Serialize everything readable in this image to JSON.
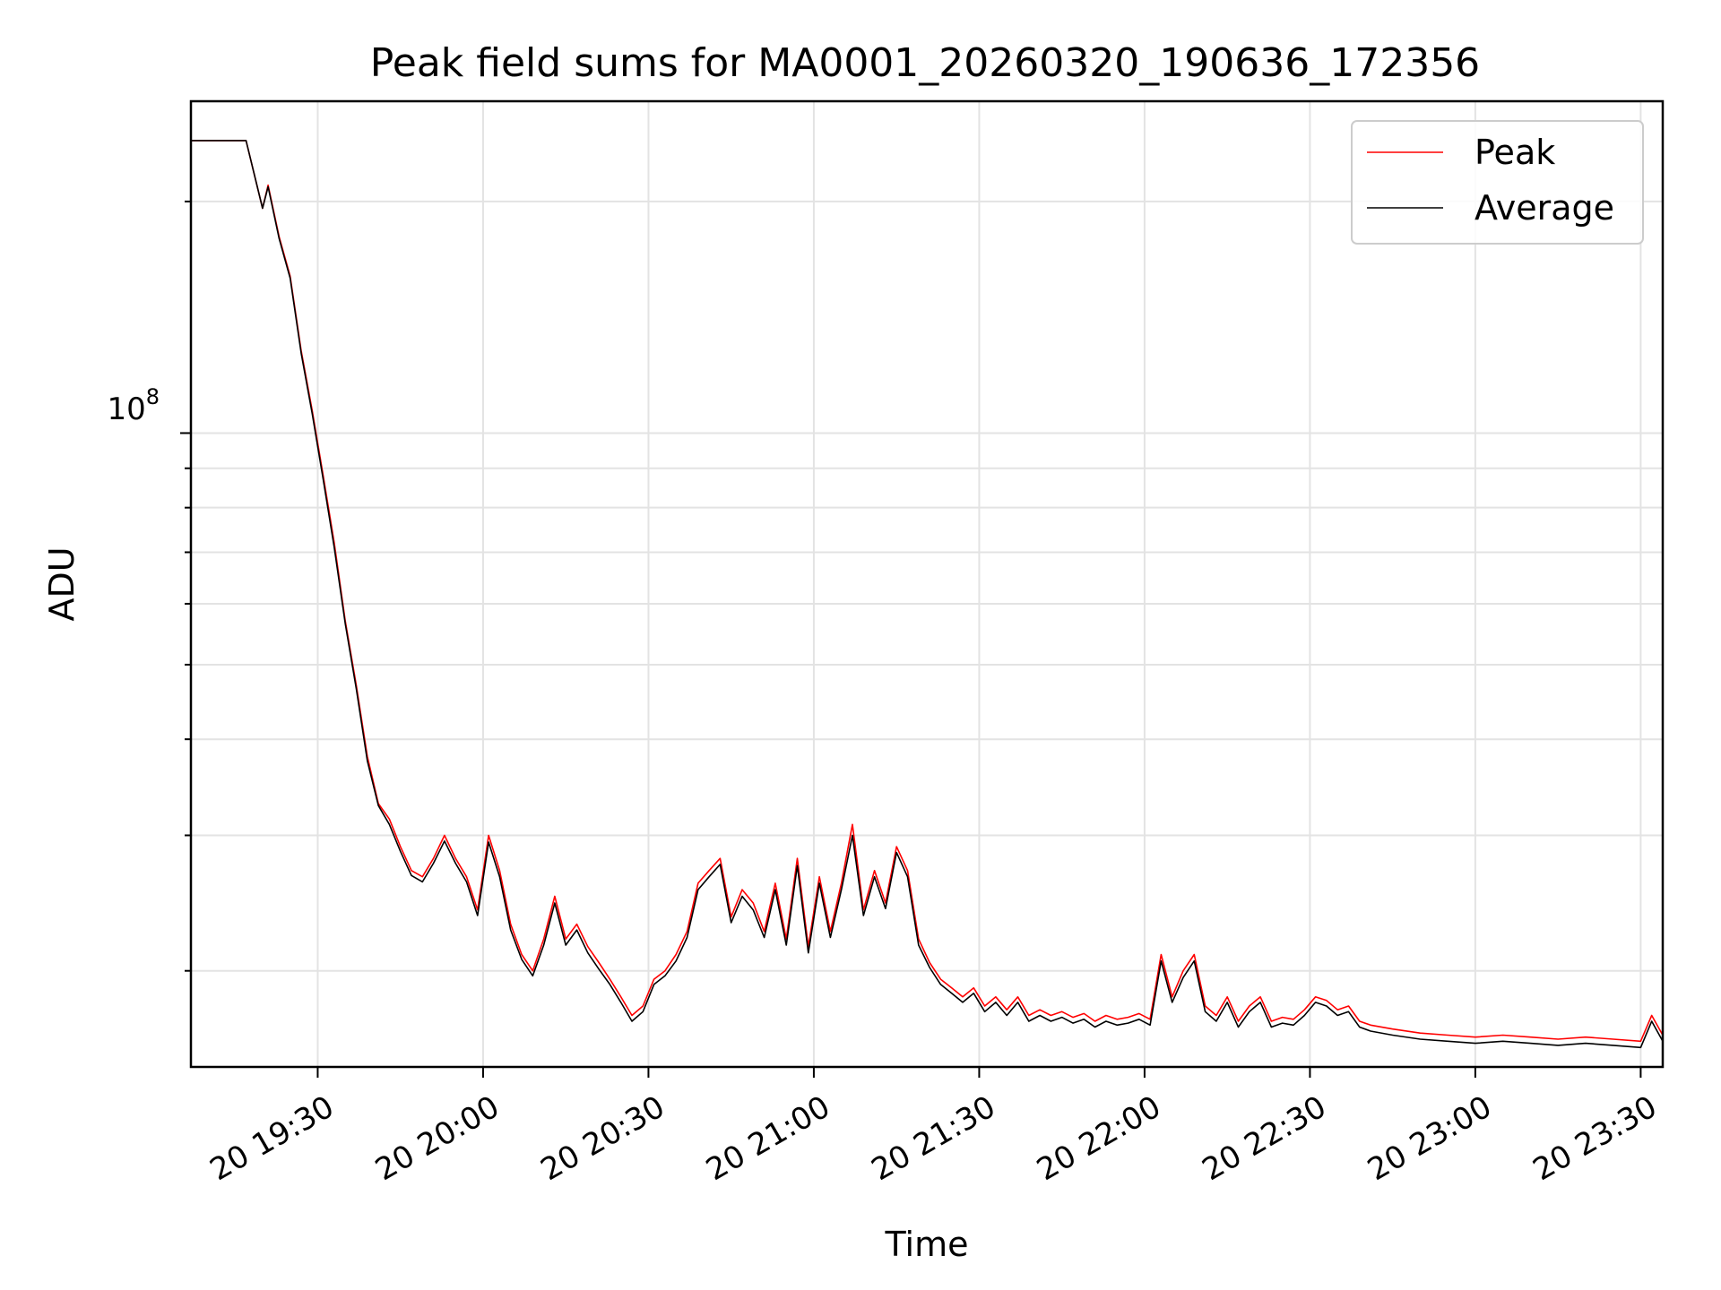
{
  "chart_data": {
    "type": "line",
    "title": "Peak field sums for MA0001_20260320_190636_172356",
    "xlabel": "Time",
    "ylabel": "ADU",
    "yscale": "log",
    "xlim": [
      "20 19:07",
      "20 23:34"
    ],
    "ylim": [
      15000000,
      270000000
    ],
    "x_ticks": [
      "20 19:30",
      "20 20:00",
      "20 20:30",
      "20 21:00",
      "20 21:30",
      "20 22:00",
      "20 22:30",
      "20 23:00",
      "20 23:30"
    ],
    "y_major_tick": {
      "value": 100000000,
      "base": "10",
      "exponent": "8"
    },
    "grid": true,
    "legend": {
      "position": "top-right",
      "entries": [
        "Peak",
        "Average"
      ]
    },
    "colors": {
      "Peak": "#ff0000",
      "Average": "#000000"
    },
    "series": [
      {
        "name": "Peak",
        "points": [
          [
            "20 19:07",
            240000000
          ],
          [
            "20 19:17",
            240000000
          ],
          [
            "20 19:20",
            196000000
          ],
          [
            "20 19:21",
            210000000
          ],
          [
            "20 19:23",
            180000000
          ],
          [
            "20 19:25",
            160000000
          ],
          [
            "20 19:27",
            128000000
          ],
          [
            "20 19:29",
            107000000
          ],
          [
            "20 19:31",
            88000000
          ],
          [
            "20 19:33",
            72000000
          ],
          [
            "20 19:35",
            57000000
          ],
          [
            "20 19:37",
            47000000
          ],
          [
            "20 19:39",
            38000000
          ],
          [
            "20 19:41",
            33000000
          ],
          [
            "20 19:43",
            31500000
          ],
          [
            "20 19:45",
            29000000
          ],
          [
            "20 19:47",
            27000000
          ],
          [
            "20 19:49",
            26500000
          ],
          [
            "20 19:51",
            28000000
          ],
          [
            "20 19:53",
            30000000
          ],
          [
            "20 19:55",
            28000000
          ],
          [
            "20 19:57",
            26500000
          ],
          [
            "20 19:59",
            24000000
          ],
          [
            "20 20:01",
            30000000
          ],
          [
            "20 20:03",
            27000000
          ],
          [
            "20 20:05",
            23000000
          ],
          [
            "20 20:07",
            21000000
          ],
          [
            "20 20:09",
            20000000
          ],
          [
            "20 20:11",
            22000000
          ],
          [
            "20 20:13",
            25000000
          ],
          [
            "20 20:15",
            22000000
          ],
          [
            "20 20:17",
            23000000
          ],
          [
            "20 20:19",
            21500000
          ],
          [
            "20 20:21",
            20500000
          ],
          [
            "20 20:23",
            19500000
          ],
          [
            "20 20:25",
            18500000
          ],
          [
            "20 20:27",
            17500000
          ],
          [
            "20 20:29",
            18000000
          ],
          [
            "20 20:31",
            19500000
          ],
          [
            "20 20:33",
            20000000
          ],
          [
            "20 20:35",
            21000000
          ],
          [
            "20 20:37",
            22500000
          ],
          [
            "20 20:39",
            26000000
          ],
          [
            "20 20:41",
            27000000
          ],
          [
            "20 20:43",
            28000000
          ],
          [
            "20 20:45",
            23500000
          ],
          [
            "20 20:47",
            25500000
          ],
          [
            "20 20:49",
            24500000
          ],
          [
            "20 20:51",
            22500000
          ],
          [
            "20 20:53",
            26000000
          ],
          [
            "20 20:55",
            22000000
          ],
          [
            "20 20:57",
            28000000
          ],
          [
            "20 20:59",
            21500000
          ],
          [
            "20 21:01",
            26500000
          ],
          [
            "20 21:03",
            22500000
          ],
          [
            "20 21:05",
            26000000
          ],
          [
            "20 21:07",
            31000000
          ],
          [
            "20 21:09",
            24000000
          ],
          [
            "20 21:11",
            27000000
          ],
          [
            "20 21:13",
            24500000
          ],
          [
            "20 21:15",
            29000000
          ],
          [
            "20 21:17",
            27000000
          ],
          [
            "20 21:19",
            22000000
          ],
          [
            "20 21:21",
            20500000
          ],
          [
            "20 21:23",
            19500000
          ],
          [
            "20 21:25",
            19000000
          ],
          [
            "20 21:27",
            18500000
          ],
          [
            "20 21:29",
            19000000
          ],
          [
            "20 21:31",
            18000000
          ],
          [
            "20 21:33",
            18500000
          ],
          [
            "20 21:35",
            17800000
          ],
          [
            "20 21:37",
            18500000
          ],
          [
            "20 21:39",
            17500000
          ],
          [
            "20 21:41",
            17800000
          ],
          [
            "20 21:43",
            17500000
          ],
          [
            "20 21:45",
            17700000
          ],
          [
            "20 21:47",
            17400000
          ],
          [
            "20 21:49",
            17600000
          ],
          [
            "20 21:51",
            17200000
          ],
          [
            "20 21:53",
            17500000
          ],
          [
            "20 21:55",
            17300000
          ],
          [
            "20 21:57",
            17400000
          ],
          [
            "20 21:59",
            17600000
          ],
          [
            "20 22:01",
            17300000
          ],
          [
            "20 22:03",
            21000000
          ],
          [
            "20 22:05",
            18500000
          ],
          [
            "20 22:07",
            20000000
          ],
          [
            "20 22:09",
            21000000
          ],
          [
            "20 22:11",
            18000000
          ],
          [
            "20 22:13",
            17500000
          ],
          [
            "20 22:15",
            18500000
          ],
          [
            "20 22:17",
            17200000
          ],
          [
            "20 22:19",
            18000000
          ],
          [
            "20 22:21",
            18500000
          ],
          [
            "20 22:23",
            17200000
          ],
          [
            "20 22:25",
            17400000
          ],
          [
            "20 22:27",
            17300000
          ],
          [
            "20 22:29",
            17800000
          ],
          [
            "20 22:31",
            18500000
          ],
          [
            "20 22:33",
            18300000
          ],
          [
            "20 22:35",
            17800000
          ],
          [
            "20 22:37",
            18000000
          ],
          [
            "20 22:39",
            17200000
          ],
          [
            "20 22:41",
            17000000
          ],
          [
            "20 22:45",
            16800000
          ],
          [
            "20 22:50",
            16600000
          ],
          [
            "20 22:55",
            16500000
          ],
          [
            "20 23:00",
            16400000
          ],
          [
            "20 23:05",
            16500000
          ],
          [
            "20 23:10",
            16400000
          ],
          [
            "20 23:15",
            16300000
          ],
          [
            "20 23:20",
            16400000
          ],
          [
            "20 23:25",
            16300000
          ],
          [
            "20 23:30",
            16200000
          ],
          [
            "20 23:32",
            17500000
          ],
          [
            "20 23:34",
            16500000
          ]
        ]
      },
      {
        "name": "Average",
        "points": [
          [
            "20 19:07",
            240000000
          ],
          [
            "20 19:17",
            240000000
          ],
          [
            "20 19:20",
            196000000
          ],
          [
            "20 19:21",
            209000000
          ],
          [
            "20 19:23",
            179000000
          ],
          [
            "20 19:25",
            159000000
          ],
          [
            "20 19:27",
            127000000
          ],
          [
            "20 19:29",
            106000000
          ],
          [
            "20 19:31",
            87000000
          ],
          [
            "20 19:33",
            71000000
          ],
          [
            "20 19:35",
            56500000
          ],
          [
            "20 19:37",
            46500000
          ],
          [
            "20 19:39",
            37500000
          ],
          [
            "20 19:41",
            32800000
          ],
          [
            "20 19:43",
            31000000
          ],
          [
            "20 19:45",
            28600000
          ],
          [
            "20 19:47",
            26600000
          ],
          [
            "20 19:49",
            26100000
          ],
          [
            "20 19:51",
            27600000
          ],
          [
            "20 19:53",
            29500000
          ],
          [
            "20 19:55",
            27600000
          ],
          [
            "20 19:57",
            26100000
          ],
          [
            "20 19:59",
            23600000
          ],
          [
            "20 20:01",
            29400000
          ],
          [
            "20 20:03",
            26500000
          ],
          [
            "20 20:05",
            22600000
          ],
          [
            "20 20:07",
            20700000
          ],
          [
            "20 20:09",
            19700000
          ],
          [
            "20 20:11",
            21600000
          ],
          [
            "20 20:13",
            24500000
          ],
          [
            "20 20:15",
            21600000
          ],
          [
            "20 20:17",
            22600000
          ],
          [
            "20 20:19",
            21100000
          ],
          [
            "20 20:21",
            20100000
          ],
          [
            "20 20:23",
            19200000
          ],
          [
            "20 20:25",
            18200000
          ],
          [
            "20 20:27",
            17200000
          ],
          [
            "20 20:29",
            17700000
          ],
          [
            "20 20:31",
            19200000
          ],
          [
            "20 20:33",
            19700000
          ],
          [
            "20 20:35",
            20600000
          ],
          [
            "20 20:37",
            22100000
          ],
          [
            "20 20:39",
            25500000
          ],
          [
            "20 20:41",
            26500000
          ],
          [
            "20 20:43",
            27500000
          ],
          [
            "20 20:45",
            23100000
          ],
          [
            "20 20:47",
            25000000
          ],
          [
            "20 20:49",
            24000000
          ],
          [
            "20 20:51",
            22100000
          ],
          [
            "20 20:53",
            25500000
          ],
          [
            "20 20:55",
            21600000
          ],
          [
            "20 20:57",
            27400000
          ],
          [
            "20 20:59",
            21100000
          ],
          [
            "20 21:01",
            26000000
          ],
          [
            "20 21:03",
            22100000
          ],
          [
            "20 21:05",
            25500000
          ],
          [
            "20 21:07",
            30000000
          ],
          [
            "20 21:09",
            23600000
          ],
          [
            "20 21:11",
            26500000
          ],
          [
            "20 21:13",
            24100000
          ],
          [
            "20 21:15",
            28500000
          ],
          [
            "20 21:17",
            26500000
          ],
          [
            "20 21:19",
            21600000
          ],
          [
            "20 21:21",
            20200000
          ],
          [
            "20 21:23",
            19200000
          ],
          [
            "20 21:25",
            18700000
          ],
          [
            "20 21:27",
            18200000
          ],
          [
            "20 21:29",
            18700000
          ],
          [
            "20 21:31",
            17700000
          ],
          [
            "20 21:33",
            18200000
          ],
          [
            "20 21:35",
            17500000
          ],
          [
            "20 21:37",
            18200000
          ],
          [
            "20 21:39",
            17200000
          ],
          [
            "20 21:41",
            17500000
          ],
          [
            "20 21:43",
            17200000
          ],
          [
            "20 21:45",
            17400000
          ],
          [
            "20 21:47",
            17100000
          ],
          [
            "20 21:49",
            17300000
          ],
          [
            "20 21:51",
            16900000
          ],
          [
            "20 21:53",
            17200000
          ],
          [
            "20 21:55",
            17000000
          ],
          [
            "20 21:57",
            17100000
          ],
          [
            "20 21:59",
            17300000
          ],
          [
            "20 22:01",
            17000000
          ],
          [
            "20 22:03",
            20600000
          ],
          [
            "20 22:05",
            18200000
          ],
          [
            "20 22:07",
            19600000
          ],
          [
            "20 22:09",
            20600000
          ],
          [
            "20 22:11",
            17700000
          ],
          [
            "20 22:13",
            17200000
          ],
          [
            "20 22:15",
            18200000
          ],
          [
            "20 22:17",
            16900000
          ],
          [
            "20 22:19",
            17700000
          ],
          [
            "20 22:21",
            18200000
          ],
          [
            "20 22:23",
            16900000
          ],
          [
            "20 22:25",
            17100000
          ],
          [
            "20 22:27",
            17000000
          ],
          [
            "20 22:29",
            17500000
          ],
          [
            "20 22:31",
            18200000
          ],
          [
            "20 22:33",
            18000000
          ],
          [
            "20 22:35",
            17500000
          ],
          [
            "20 22:37",
            17700000
          ],
          [
            "20 22:39",
            16900000
          ],
          [
            "20 22:41",
            16700000
          ],
          [
            "20 22:45",
            16500000
          ],
          [
            "20 22:50",
            16300000
          ],
          [
            "20 22:55",
            16200000
          ],
          [
            "20 23:00",
            16100000
          ],
          [
            "20 23:05",
            16200000
          ],
          [
            "20 23:10",
            16100000
          ],
          [
            "20 23:15",
            16000000
          ],
          [
            "20 23:20",
            16100000
          ],
          [
            "20 23:25",
            16000000
          ],
          [
            "20 23:30",
            15900000
          ],
          [
            "20 23:32",
            17200000
          ],
          [
            "20 23:34",
            16200000
          ]
        ]
      }
    ]
  }
}
